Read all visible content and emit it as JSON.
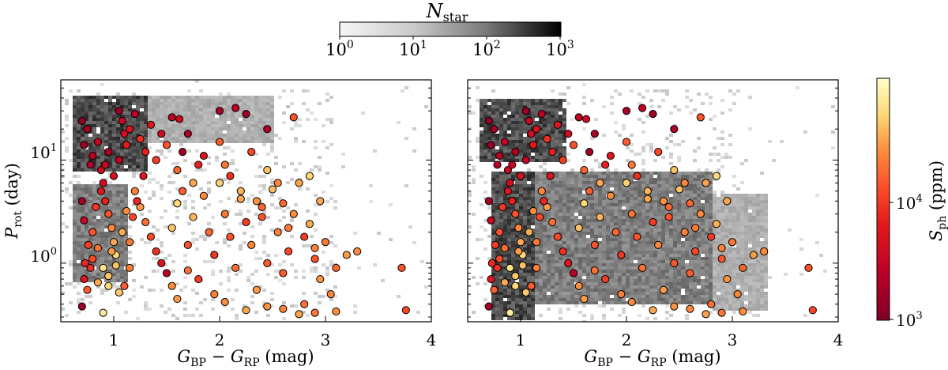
{
  "chart_data": [
    {
      "panel": "left",
      "type": "scatter",
      "xlabel": "G_BP − G_RP (mag)",
      "ylabel": "P_rot (day)",
      "xlim": [
        0.5,
        4.0
      ],
      "ylim": [
        0.27,
        60
      ],
      "y_scale": "log",
      "grid": false,
      "x_ticks": [
        "1",
        "2",
        "3",
        "4"
      ],
      "y_ticks": [
        "10^0",
        "10^1"
      ],
      "background_density": {
        "type": "heatmap",
        "description_of_structure": "dense clump near colour 0.7–1.3 and periods 10–40 d, sparse cells elsewhere",
        "peak_regions": [
          {
            "x": [
              0.6,
              1.3
            ],
            "y": [
              8,
              45
            ],
            "level": "high"
          },
          {
            "x": [
              0.6,
              1.1
            ],
            "y": [
              0.7,
              6
            ],
            "level": "medium"
          },
          {
            "x": [
              1.3,
              2.5
            ],
            "y": [
              15,
              45
            ],
            "level": "low"
          }
        ]
      },
      "note": "scatter points are the same sample in both panels"
    },
    {
      "panel": "right",
      "type": "scatter",
      "xlabel": "G_BP − G_RP (mag)",
      "xlim": [
        0.5,
        4.0
      ],
      "ylim": [
        0.27,
        60
      ],
      "y_scale": "log",
      "grid": false,
      "x_ticks": [
        "1",
        "2",
        "3",
        "4"
      ],
      "background_density": {
        "type": "heatmap",
        "peak_regions": [
          {
            "x": [
              0.7,
              1.1
            ],
            "y": [
              0.3,
              8
            ],
            "level": "high"
          },
          {
            "x": [
              0.6,
              1.4
            ],
            "y": [
              10,
              40
            ],
            "level": "high"
          },
          {
            "x": [
              1.1,
              2.8
            ],
            "y": [
              0.4,
              8
            ],
            "level": "medium"
          },
          {
            "x": [
              2.8,
              3.3
            ],
            "y": [
              0.35,
              5
            ],
            "level": "low"
          }
        ]
      }
    }
  ],
  "shared_points": [
    [
      0.7,
      24,
      1200
    ],
    [
      0.72,
      14,
      1300
    ],
    [
      0.75,
      20,
      1500
    ],
    [
      0.78,
      9,
      1800
    ],
    [
      0.7,
      4,
      1500
    ],
    [
      0.72,
      2.6,
      2500
    ],
    [
      0.8,
      11,
      2000
    ],
    [
      0.85,
      15,
      2400
    ],
    [
      0.88,
      8,
      2800
    ],
    [
      0.9,
      6,
      3000
    ],
    [
      0.92,
      4,
      5000
    ],
    [
      0.95,
      3,
      9000
    ],
    [
      0.98,
      2.2,
      15000
    ],
    [
      1.0,
      1.6,
      20000
    ],
    [
      1.02,
      1.2,
      30000
    ],
    [
      0.9,
      0.9,
      35000
    ],
    [
      0.95,
      0.75,
      25000
    ],
    [
      0.85,
      1.4,
      12000
    ],
    [
      0.8,
      1.1,
      8000
    ],
    [
      0.78,
      0.9,
      6000
    ],
    [
      0.75,
      0.55,
      10000
    ],
    [
      0.7,
      0.38,
      1400
    ],
    [
      0.9,
      0.33,
      40000
    ],
    [
      1.05,
      30,
      1300
    ],
    [
      1.08,
      24,
      2500
    ],
    [
      1.1,
      18,
      3200
    ],
    [
      1.12,
      14,
      4500
    ],
    [
      1.15,
      20,
      3600
    ],
    [
      1.2,
      28,
      2000
    ],
    [
      1.25,
      16,
      6000
    ],
    [
      1.3,
      12,
      5000
    ],
    [
      1.35,
      22,
      4000
    ],
    [
      1.4,
      10,
      7000
    ],
    [
      1.45,
      18,
      3000
    ],
    [
      1.5,
      14,
      9000
    ],
    [
      1.55,
      26,
      2200
    ],
    [
      1.6,
      8,
      11000
    ],
    [
      1.65,
      12,
      1400
    ],
    [
      1.7,
      18,
      1600
    ],
    [
      1.75,
      6,
      20000
    ],
    [
      1.8,
      9,
      5000
    ],
    [
      1.62,
      25,
      2800
    ],
    [
      1.2,
      5,
      15000
    ],
    [
      1.25,
      3.5,
      18000
    ],
    [
      1.3,
      2.5,
      12000
    ],
    [
      1.35,
      1.8,
      8000
    ],
    [
      1.4,
      1.3,
      6000
    ],
    [
      1.45,
      1.0,
      4000
    ],
    [
      1.1,
      0.6,
      10000
    ],
    [
      1.15,
      0.9,
      14000
    ],
    [
      1.5,
      0.8,
      2000
    ],
    [
      1.55,
      2.2,
      25000
    ],
    [
      1.6,
      3.8,
      30000
    ],
    [
      1.7,
      1.5,
      9000
    ],
    [
      1.75,
      2.8,
      22000
    ],
    [
      1.8,
      0.7,
      7000
    ],
    [
      1.85,
      4.5,
      16000
    ],
    [
      1.9,
      2.0,
      11000
    ],
    [
      1.95,
      1.2,
      6500
    ],
    [
      2.0,
      6.0,
      28000
    ],
    [
      2.05,
      3.0,
      13000
    ],
    [
      2.1,
      1.8,
      9000
    ],
    [
      2.15,
      0.9,
      12000
    ],
    [
      2.2,
      4.2,
      20000
    ],
    [
      2.25,
      2.5,
      7000
    ],
    [
      2.3,
      1.5,
      15000
    ],
    [
      2.35,
      0.55,
      18000
    ],
    [
      2.4,
      3.5,
      11000
    ],
    [
      2.45,
      1.0,
      9500
    ],
    [
      2.5,
      5.2,
      24000
    ],
    [
      2.55,
      2.0,
      14000
    ],
    [
      2.6,
      0.8,
      10000
    ],
    [
      2.65,
      1.3,
      8000
    ],
    [
      2.7,
      3.0,
      16000
    ],
    [
      2.75,
      6.0,
      19000
    ],
    [
      2.8,
      0.4,
      12000
    ],
    [
      2.85,
      2.4,
      21000
    ],
    [
      2.9,
      1.1,
      9000
    ],
    [
      2.95,
      0.7,
      17000
    ],
    [
      3.0,
      1.6,
      13000
    ],
    [
      3.05,
      0.5,
      15000
    ],
    [
      3.1,
      0.9,
      11000
    ],
    [
      3.2,
      1.2,
      18000
    ],
    [
      3.3,
      1.3,
      16000
    ],
    [
      3.72,
      0.9,
      9000
    ],
    [
      3.76,
      0.35,
      8000
    ],
    [
      2.0,
      30,
      1500
    ],
    [
      2.15,
      32,
      2200
    ],
    [
      2.25,
      28,
      1300
    ],
    [
      2.45,
      20,
      1800
    ],
    [
      2.7,
      26,
      9000
    ],
    [
      2.3,
      12,
      8000
    ],
    [
      2.45,
      8,
      25000
    ],
    [
      2.55,
      6,
      15000
    ],
    [
      2.85,
      7,
      30000
    ],
    [
      2.95,
      4,
      20000
    ],
    [
      1.85,
      11,
      4000
    ],
    [
      2.0,
      15,
      10000
    ],
    [
      2.05,
      9,
      13000
    ],
    [
      2.1,
      7,
      6000
    ],
    [
      2.2,
      5,
      22000
    ],
    [
      2.35,
      4,
      17000
    ],
    [
      2.4,
      2.8,
      9000
    ],
    [
      2.6,
      3.8,
      11000
    ],
    [
      2.65,
      2.2,
      13000
    ],
    [
      2.8,
      1.8,
      7000
    ],
    [
      2.9,
      1.4,
      14000
    ],
    [
      1.65,
      5.0,
      10000
    ],
    [
      1.7,
      0.85,
      12000
    ],
    [
      1.55,
      0.6,
      16000
    ],
    [
      1.6,
      0.45,
      18000
    ],
    [
      1.95,
      0.5,
      14000
    ],
    [
      2.05,
      0.42,
      16000
    ],
    [
      2.25,
      0.35,
      20000
    ],
    [
      2.45,
      0.38,
      17000
    ],
    [
      2.6,
      0.36,
      15000
    ],
    [
      2.75,
      0.32,
      19000
    ],
    [
      2.9,
      0.33,
      13000
    ],
    [
      3.1,
      0.34,
      16000
    ],
    [
      1.05,
      10,
      2200
    ],
    [
      1.0,
      7,
      3500
    ],
    [
      0.95,
      12,
      1800
    ],
    [
      0.92,
      9,
      2600
    ],
    [
      0.88,
      5,
      4200
    ],
    [
      0.83,
      3.5,
      6500
    ],
    [
      0.8,
      2.0,
      9000
    ],
    [
      0.76,
      1.5,
      7000
    ],
    [
      0.73,
      1.0,
      5500
    ],
    [
      0.72,
      0.7,
      4000
    ],
    [
      0.85,
      0.65,
      20000
    ],
    [
      0.95,
      0.6,
      30000
    ],
    [
      1.05,
      0.52,
      26000
    ],
    [
      1.15,
      1.6,
      13000
    ],
    [
      1.18,
      2.8,
      8000
    ],
    [
      1.22,
      4.0,
      5500
    ],
    [
      1.28,
      7.0,
      4000
    ],
    [
      1.12,
      3.2,
      16000
    ],
    [
      1.08,
      2.0,
      21000
    ],
    [
      1.02,
      0.95,
      24000
    ],
    [
      0.98,
      1.3,
      18000
    ]
  ],
  "colorbar_top": {
    "title": "N_star",
    "scale": "log",
    "ticks": [
      "10^0",
      "10^1",
      "10^2",
      "10^3"
    ],
    "range": [
      1,
      1000
    ],
    "colormap": "Greys"
  },
  "colorbar_right": {
    "label": "S_ph (ppm)",
    "scale": "log",
    "ticks": [
      "10^3",
      "10^4"
    ],
    "range": [
      900,
      55000
    ],
    "colormap": "YlOrRd_r"
  }
}
